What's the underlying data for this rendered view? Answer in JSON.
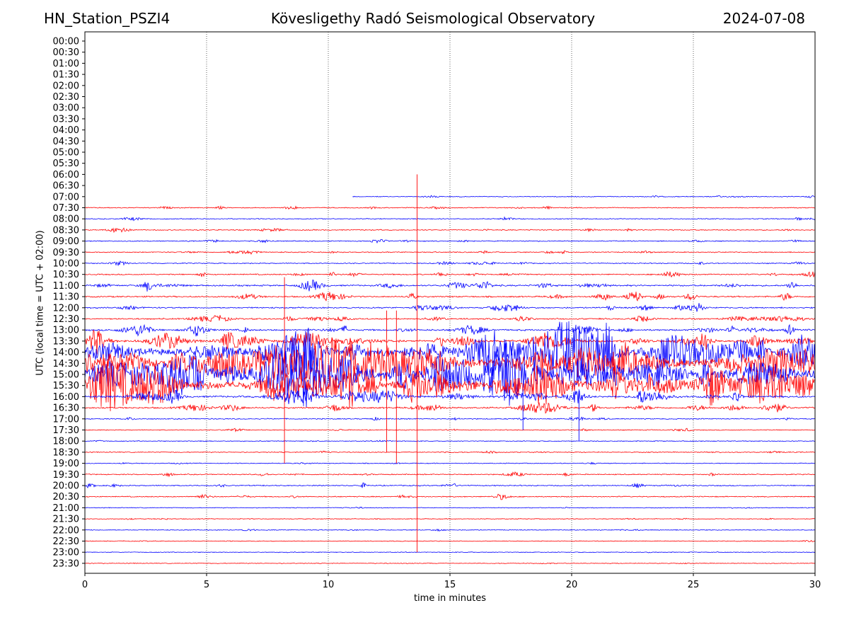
{
  "header": {
    "station": "HN_Station_PSZI4",
    "observatory": "Kövesligethy Radó Seismological Observatory",
    "date": "2024-07-08"
  },
  "chart_data": {
    "type": "line",
    "title": "Kövesligethy Radó Seismological Observatory",
    "xlabel": "time in minutes",
    "ylabel": "UTC (local time = UTC + 02:00)",
    "xlim": [
      0,
      30
    ],
    "x_ticks": [
      "0",
      "5",
      "10",
      "15",
      "20",
      "25",
      "30"
    ],
    "grid": "vertical dotted at 5-minute ticks",
    "row_labels": [
      "00:00",
      "00:30",
      "01:00",
      "01:30",
      "02:00",
      "02:30",
      "03:00",
      "03:30",
      "04:00",
      "04:30",
      "05:00",
      "05:30",
      "06:00",
      "06:30",
      "07:00",
      "07:30",
      "08:00",
      "08:30",
      "09:00",
      "09:30",
      "10:00",
      "10:30",
      "11:00",
      "11:30",
      "12:00",
      "12:30",
      "13:00",
      "13:30",
      "14:00",
      "14:30",
      "15:00",
      "15:30",
      "16:00",
      "16:30",
      "17:00",
      "17:30",
      "18:00",
      "18:30",
      "19:00",
      "19:30",
      "20:00",
      "20:30",
      "21:00",
      "21:30",
      "22:00",
      "22:30",
      "23:00",
      "23:30"
    ],
    "colors": {
      "even_rows": "#0000ff",
      "odd_rows": "#ff0000",
      "grid": "#000000"
    },
    "trace_start_minute_first_row": 11,
    "first_row_with_data": "07:00",
    "row_activity": {
      "07:00": 0.08,
      "07:30": 0.12,
      "08:00": 0.1,
      "08:30": 0.15,
      "09:00": 0.12,
      "09:30": 0.15,
      "10:00": 0.14,
      "10:30": 0.22,
      "11:00": 0.35,
      "11:30": 0.3,
      "12:00": 0.28,
      "12:30": 0.3,
      "13:00": 0.4,
      "13:30": 0.6,
      "14:00": 0.95,
      "14:30": 1.0,
      "15:00": 1.0,
      "15:30": 1.0,
      "16:00": 0.5,
      "16:30": 0.35,
      "17:00": 0.15,
      "17:30": 0.1,
      "18:00": 0.08,
      "18:30": 0.1,
      "19:00": 0.08,
      "19:30": 0.15,
      "20:00": 0.18,
      "20:30": 0.15,
      "21:00": 0.05,
      "21:30": 0.05,
      "22:00": 0.08,
      "22:30": 0.04,
      "23:00": 0.04,
      "23:30": 0.03
    },
    "spikes": [
      {
        "row": "07:30",
        "minute": 13.65,
        "amplitude_rows": 6,
        "color": "#ff0000",
        "extends_to_row": "23:00"
      },
      {
        "row": "11:00",
        "minute": 8.2,
        "amplitude_rows": 1.5,
        "color": "#ff0000",
        "extends_to_row": "19:00"
      },
      {
        "row": "12:30",
        "minute": 12.4,
        "amplitude_rows": 1.5,
        "color": "#ff0000",
        "extends_to_row": "18:30"
      },
      {
        "row": "12:30",
        "minute": 12.8,
        "amplitude_rows": 1.5,
        "color": "#ff0000",
        "extends_to_row": "19:00"
      },
      {
        "row": "16:00",
        "minute": 18.0,
        "amplitude_rows": 1.3,
        "color": "#0000ff",
        "extends_to_row": "17:30"
      },
      {
        "row": "16:00",
        "minute": 20.3,
        "amplitude_rows": 1.3,
        "color": "#0000ff",
        "extends_to_row": "18:00"
      }
    ]
  }
}
